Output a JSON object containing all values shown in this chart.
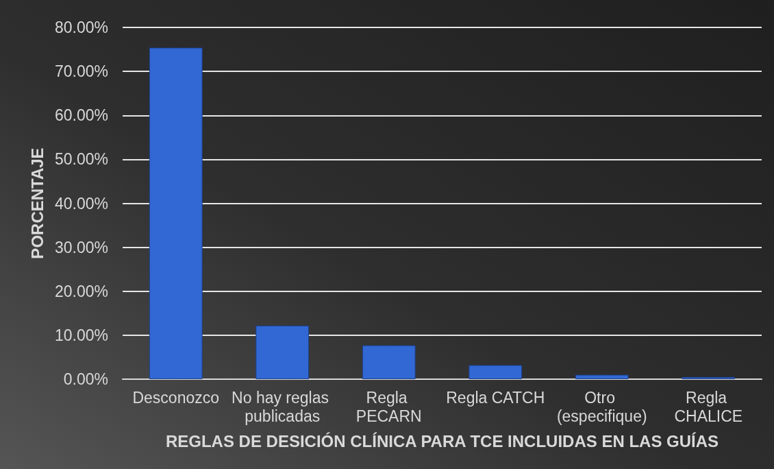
{
  "chart_data": {
    "type": "bar",
    "xlabel": "REGLAS DE DESICIÓN CLÍNICA PARA TCE INCLUIDAS EN LAS GUÍAS",
    "ylabel": "PORCENTAJE",
    "categories": [
      "Desconozco",
      "No hay reglas publicadas",
      "Regla PECARN",
      "Regla CATCH",
      "Otro (especifique)",
      "Regla CHALICE"
    ],
    "values": [
      75.4,
      12.2,
      7.7,
      3.2,
      1.0,
      0.5
    ],
    "color": "#3168d4",
    "ylim": [
      0,
      80
    ],
    "yticks": [
      {
        "value": 0,
        "label": "0.00%"
      },
      {
        "value": 10,
        "label": "10.00%"
      },
      {
        "value": 20,
        "label": "20.00%"
      },
      {
        "value": 30,
        "label": "30.00%"
      },
      {
        "value": 40,
        "label": "40.00%"
      },
      {
        "value": 50,
        "label": "50.00%"
      },
      {
        "value": 60,
        "label": "60.00%"
      },
      {
        "value": 70,
        "label": "70.00%"
      },
      {
        "value": 80,
        "label": "80.00%"
      }
    ],
    "grid": "y"
  }
}
